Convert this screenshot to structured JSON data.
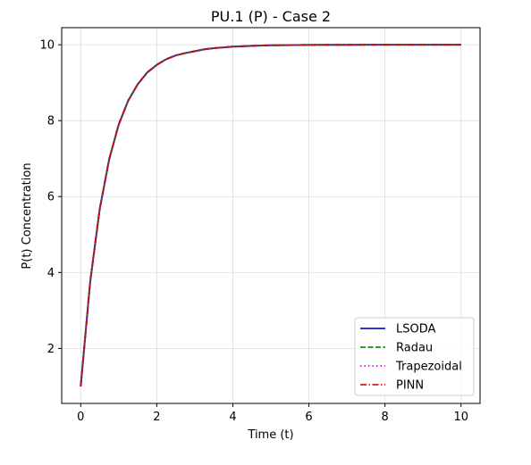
{
  "chart_data": {
    "type": "line",
    "title": "PU.1 (P) - Case 2",
    "xlabel": "Time (t)",
    "ylabel": "P(t) Concentration",
    "xlim": [
      -0.5,
      10.5
    ],
    "ylim": [
      0.55,
      10.45
    ],
    "xticks": [
      "0",
      "2",
      "4",
      "6",
      "8",
      "10"
    ],
    "yticks": [
      "2",
      "4",
      "6",
      "8",
      "10"
    ],
    "grid": true,
    "legend_position": "lower-right",
    "x": [
      0,
      0.25,
      0.5,
      0.75,
      1,
      1.25,
      1.5,
      1.75,
      2,
      2.25,
      2.5,
      2.75,
      3,
      3.25,
      3.5,
      3.75,
      4,
      4.25,
      4.5,
      4.75,
      5,
      5.5,
      6,
      6.5,
      7,
      7.5,
      8,
      8.5,
      9,
      9.5,
      10
    ],
    "series": [
      {
        "name": "LSODA",
        "color": "#0000cc",
        "dash": "solid",
        "values": [
          1.0,
          3.76,
          5.67,
          6.99,
          7.9,
          8.53,
          8.96,
          9.27,
          9.47,
          9.62,
          9.72,
          9.78,
          9.83,
          9.88,
          9.91,
          9.93,
          9.95,
          9.96,
          9.97,
          9.98,
          9.985,
          9.99,
          9.995,
          9.997,
          9.998,
          9.999,
          10.0,
          10.0,
          10.0,
          10.0,
          10.0
        ]
      },
      {
        "name": "Radau",
        "color": "#008000",
        "dash": "dashed",
        "values": [
          1.0,
          3.76,
          5.67,
          6.99,
          7.9,
          8.53,
          8.96,
          9.27,
          9.47,
          9.62,
          9.72,
          9.78,
          9.83,
          9.88,
          9.91,
          9.93,
          9.95,
          9.96,
          9.97,
          9.98,
          9.985,
          9.99,
          9.995,
          9.997,
          9.998,
          9.999,
          10.0,
          10.0,
          10.0,
          10.0,
          10.0
        ]
      },
      {
        "name": "Trapezoidal",
        "color": "#cc00cc",
        "dash": "dotted",
        "values": [
          1.0,
          3.76,
          5.67,
          6.99,
          7.9,
          8.53,
          8.96,
          9.27,
          9.47,
          9.62,
          9.72,
          9.78,
          9.83,
          9.88,
          9.91,
          9.93,
          9.95,
          9.96,
          9.97,
          9.98,
          9.985,
          9.99,
          9.995,
          9.997,
          9.998,
          9.999,
          10.0,
          10.0,
          10.0,
          10.0,
          10.0
        ]
      },
      {
        "name": "PINN",
        "color": "#dd0000",
        "dash": "dashdot",
        "values": [
          1.0,
          3.76,
          5.67,
          6.99,
          7.9,
          8.53,
          8.96,
          9.27,
          9.47,
          9.62,
          9.72,
          9.78,
          9.83,
          9.88,
          9.91,
          9.93,
          9.95,
          9.96,
          9.97,
          9.98,
          9.985,
          9.99,
          9.995,
          9.997,
          9.998,
          9.999,
          10.0,
          10.0,
          10.0,
          10.0,
          10.0
        ]
      }
    ]
  }
}
